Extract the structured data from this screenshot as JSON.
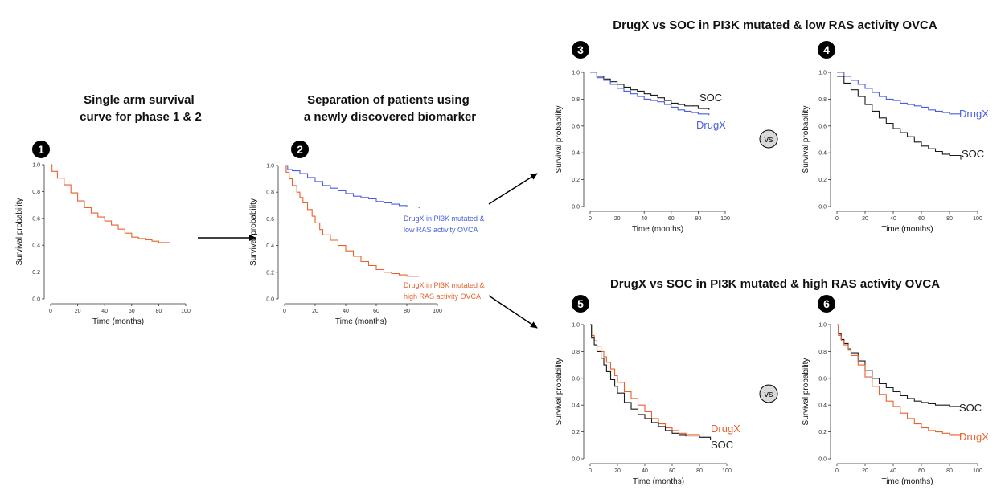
{
  "panel_1_heading": [
    "Single arm survival",
    "curve for phase 1 & 2"
  ],
  "panel_2_heading": [
    "Separation of patients using",
    "a newly discovered biomarker"
  ],
  "top_row_heading": "DrugX vs SOC in PI3K mutated & low RAS activity OVCA",
  "bottom_row_heading": "DrugX vs SOC in PI3K mutated & high RAS activity OVCA",
  "vs_label": "vs",
  "colors": {
    "orange": "#e8622c",
    "blue": "#4a5fe0",
    "black": "#1a1a1a",
    "badge": "#000000",
    "vs_fill": "#d9d9d9"
  },
  "chart_data": [
    {
      "id": "1",
      "type": "line",
      "step": true,
      "xlabel": "Time (months)",
      "ylabel": "Survival probability",
      "xlim": [
        0,
        100
      ],
      "ylim": [
        0,
        1
      ],
      "xticks": [
        0,
        20,
        40,
        60,
        80,
        100
      ],
      "yticks": [
        0.0,
        0.2,
        0.4,
        0.6,
        0.8,
        1.0
      ],
      "series": [
        {
          "color": "orange",
          "points": [
            [
              0,
              1.0
            ],
            [
              1,
              0.95
            ],
            [
              5,
              0.9
            ],
            [
              10,
              0.85
            ],
            [
              15,
              0.79
            ],
            [
              20,
              0.73
            ],
            [
              25,
              0.68
            ],
            [
              30,
              0.64
            ],
            [
              35,
              0.61
            ],
            [
              40,
              0.58
            ],
            [
              45,
              0.55
            ],
            [
              50,
              0.52
            ],
            [
              55,
              0.49
            ],
            [
              60,
              0.46
            ],
            [
              65,
              0.45
            ],
            [
              70,
              0.44
            ],
            [
              75,
              0.43
            ],
            [
              80,
              0.42
            ],
            [
              88,
              0.42
            ]
          ]
        }
      ]
    },
    {
      "id": "2",
      "type": "line",
      "step": true,
      "xlabel": "Time (months)",
      "ylabel": "Survival probability",
      "xlim": [
        0,
        100
      ],
      "ylim": [
        0,
        1
      ],
      "xticks": [
        0,
        20,
        40,
        60,
        80,
        100
      ],
      "yticks": [
        0.0,
        0.2,
        0.4,
        0.6,
        0.8,
        1.0
      ],
      "series": [
        {
          "name": "DrugX in PI3K mutated & low RAS activity OVCA",
          "color": "blue",
          "label_lines": [
            "DrugX in PI3K mutated &",
            "low RAS activity OVCA"
          ],
          "points": [
            [
              0,
              1.0
            ],
            [
              2,
              0.97
            ],
            [
              5,
              0.96
            ],
            [
              10,
              0.94
            ],
            [
              15,
              0.91
            ],
            [
              20,
              0.88
            ],
            [
              25,
              0.85
            ],
            [
              30,
              0.83
            ],
            [
              35,
              0.81
            ],
            [
              40,
              0.79
            ],
            [
              45,
              0.77
            ],
            [
              50,
              0.76
            ],
            [
              55,
              0.75
            ],
            [
              60,
              0.73
            ],
            [
              65,
              0.72
            ],
            [
              70,
              0.71
            ],
            [
              75,
              0.7
            ],
            [
              80,
              0.69
            ],
            [
              88,
              0.68
            ]
          ]
        },
        {
          "name": "DrugX in PI3K mutated & high RAS activity OVCA",
          "color": "orange",
          "label_lines": [
            "DrugX in PI3K mutated &",
            "high RAS activity OVCA"
          ],
          "points": [
            [
              0,
              1.0
            ],
            [
              1,
              0.95
            ],
            [
              3,
              0.9
            ],
            [
              5,
              0.85
            ],
            [
              8,
              0.8
            ],
            [
              10,
              0.76
            ],
            [
              12,
              0.72
            ],
            [
              15,
              0.67
            ],
            [
              18,
              0.62
            ],
            [
              20,
              0.57
            ],
            [
              23,
              0.52
            ],
            [
              25,
              0.48
            ],
            [
              30,
              0.44
            ],
            [
              35,
              0.4
            ],
            [
              40,
              0.36
            ],
            [
              45,
              0.32
            ],
            [
              50,
              0.28
            ],
            [
              55,
              0.25
            ],
            [
              60,
              0.22
            ],
            [
              65,
              0.2
            ],
            [
              70,
              0.19
            ],
            [
              75,
              0.18
            ],
            [
              80,
              0.17
            ],
            [
              88,
              0.17
            ]
          ]
        }
      ]
    },
    {
      "id": "3",
      "type": "line",
      "step": true,
      "xlabel": "Time (months)",
      "ylabel": "Survival probability",
      "xlim": [
        0,
        100
      ],
      "ylim": [
        0,
        1
      ],
      "xticks": [
        0,
        20,
        40,
        60,
        80,
        100
      ],
      "yticks": [
        0.0,
        0.2,
        0.4,
        0.6,
        0.8,
        1.0
      ],
      "series": [
        {
          "name": "SOC",
          "color": "black",
          "points": [
            [
              0,
              1.0
            ],
            [
              5,
              0.97
            ],
            [
              10,
              0.95
            ],
            [
              15,
              0.93
            ],
            [
              20,
              0.91
            ],
            [
              25,
              0.89
            ],
            [
              30,
              0.87
            ],
            [
              35,
              0.86
            ],
            [
              40,
              0.84
            ],
            [
              45,
              0.83
            ],
            [
              50,
              0.81
            ],
            [
              55,
              0.79
            ],
            [
              60,
              0.77
            ],
            [
              65,
              0.76
            ],
            [
              70,
              0.75
            ],
            [
              75,
              0.75
            ],
            [
              80,
              0.73
            ],
            [
              88,
              0.72
            ]
          ]
        },
        {
          "name": "DrugX",
          "color": "blue",
          "points": [
            [
              0,
              1.0
            ],
            [
              5,
              0.96
            ],
            [
              10,
              0.94
            ],
            [
              15,
              0.91
            ],
            [
              20,
              0.88
            ],
            [
              25,
              0.86
            ],
            [
              30,
              0.84
            ],
            [
              35,
              0.82
            ],
            [
              40,
              0.8
            ],
            [
              45,
              0.79
            ],
            [
              50,
              0.78
            ],
            [
              55,
              0.76
            ],
            [
              60,
              0.74
            ],
            [
              65,
              0.72
            ],
            [
              70,
              0.71
            ],
            [
              75,
              0.7
            ],
            [
              80,
              0.69
            ],
            [
              88,
              0.68
            ]
          ]
        }
      ]
    },
    {
      "id": "4",
      "type": "line",
      "step": true,
      "xlabel": "Time (months)",
      "ylabel": "Survival probability",
      "xlim": [
        0,
        100
      ],
      "ylim": [
        0,
        1
      ],
      "xticks": [
        0,
        20,
        40,
        60,
        80,
        100
      ],
      "yticks": [
        0.0,
        0.2,
        0.4,
        0.6,
        0.8,
        1.0
      ],
      "series": [
        {
          "name": "DrugX",
          "color": "blue",
          "points": [
            [
              0,
              1.0
            ],
            [
              5,
              0.97
            ],
            [
              10,
              0.94
            ],
            [
              15,
              0.91
            ],
            [
              20,
              0.88
            ],
            [
              25,
              0.85
            ],
            [
              30,
              0.82
            ],
            [
              35,
              0.8
            ],
            [
              40,
              0.79
            ],
            [
              45,
              0.77
            ],
            [
              50,
              0.76
            ],
            [
              55,
              0.75
            ],
            [
              60,
              0.74
            ],
            [
              65,
              0.72
            ],
            [
              70,
              0.71
            ],
            [
              75,
              0.7
            ],
            [
              80,
              0.69
            ],
            [
              88,
              0.69
            ]
          ]
        },
        {
          "name": "SOC",
          "color": "black",
          "points": [
            [
              0,
              0.97
            ],
            [
              5,
              0.92
            ],
            [
              10,
              0.87
            ],
            [
              15,
              0.82
            ],
            [
              20,
              0.76
            ],
            [
              25,
              0.71
            ],
            [
              30,
              0.66
            ],
            [
              35,
              0.62
            ],
            [
              40,
              0.58
            ],
            [
              45,
              0.55
            ],
            [
              50,
              0.52
            ],
            [
              55,
              0.48
            ],
            [
              60,
              0.45
            ],
            [
              65,
              0.43
            ],
            [
              70,
              0.41
            ],
            [
              75,
              0.39
            ],
            [
              80,
              0.38
            ],
            [
              85,
              0.38
            ],
            [
              88,
              0.35
            ]
          ]
        }
      ]
    },
    {
      "id": "5",
      "type": "line",
      "step": true,
      "xlabel": "Time (months)",
      "ylabel": "Survival probability",
      "xlim": [
        0,
        100
      ],
      "ylim": [
        0,
        1
      ],
      "xticks": [
        0,
        20,
        40,
        60,
        80,
        100
      ],
      "yticks": [
        0.0,
        0.2,
        0.4,
        0.6,
        0.8,
        1.0
      ],
      "series": [
        {
          "name": "DrugX",
          "color": "orange",
          "points": [
            [
              0,
              1.0
            ],
            [
              1,
              0.92
            ],
            [
              3,
              0.88
            ],
            [
              5,
              0.84
            ],
            [
              8,
              0.8
            ],
            [
              10,
              0.76
            ],
            [
              12,
              0.72
            ],
            [
              15,
              0.67
            ],
            [
              18,
              0.62
            ],
            [
              20,
              0.57
            ],
            [
              25,
              0.5
            ],
            [
              30,
              0.45
            ],
            [
              35,
              0.4
            ],
            [
              40,
              0.35
            ],
            [
              45,
              0.3
            ],
            [
              50,
              0.26
            ],
            [
              55,
              0.23
            ],
            [
              60,
              0.21
            ],
            [
              65,
              0.19
            ],
            [
              70,
              0.18
            ],
            [
              75,
              0.18
            ],
            [
              80,
              0.17
            ],
            [
              88,
              0.17
            ]
          ]
        },
        {
          "name": "SOC",
          "color": "black",
          "points": [
            [
              0,
              1.0
            ],
            [
              1,
              0.9
            ],
            [
              3,
              0.85
            ],
            [
              5,
              0.8
            ],
            [
              8,
              0.75
            ],
            [
              10,
              0.7
            ],
            [
              12,
              0.65
            ],
            [
              15,
              0.59
            ],
            [
              18,
              0.54
            ],
            [
              20,
              0.49
            ],
            [
              25,
              0.42
            ],
            [
              30,
              0.37
            ],
            [
              35,
              0.33
            ],
            [
              40,
              0.3
            ],
            [
              45,
              0.27
            ],
            [
              50,
              0.24
            ],
            [
              55,
              0.21
            ],
            [
              60,
              0.19
            ],
            [
              65,
              0.18
            ],
            [
              70,
              0.17
            ],
            [
              80,
              0.16
            ],
            [
              88,
              0.14
            ]
          ]
        }
      ]
    },
    {
      "id": "6",
      "type": "line",
      "step": true,
      "xlabel": "Time (months)",
      "ylabel": "Survival probability",
      "xlim": [
        0,
        100
      ],
      "ylim": [
        0,
        1
      ],
      "xticks": [
        0,
        20,
        40,
        60,
        80,
        100
      ],
      "yticks": [
        0.0,
        0.2,
        0.4,
        0.6,
        0.8,
        1.0
      ],
      "series": [
        {
          "name": "SOC",
          "color": "black",
          "points": [
            [
              0,
              1.0
            ],
            [
              1,
              0.93
            ],
            [
              3,
              0.89
            ],
            [
              5,
              0.86
            ],
            [
              8,
              0.82
            ],
            [
              10,
              0.79
            ],
            [
              15,
              0.73
            ],
            [
              20,
              0.66
            ],
            [
              25,
              0.6
            ],
            [
              30,
              0.56
            ],
            [
              35,
              0.53
            ],
            [
              40,
              0.5
            ],
            [
              45,
              0.47
            ],
            [
              50,
              0.45
            ],
            [
              55,
              0.43
            ],
            [
              60,
              0.42
            ],
            [
              65,
              0.41
            ],
            [
              70,
              0.4
            ],
            [
              80,
              0.39
            ],
            [
              88,
              0.38
            ]
          ]
        },
        {
          "name": "DrugX",
          "color": "orange",
          "points": [
            [
              0,
              1.0
            ],
            [
              1,
              0.92
            ],
            [
              3,
              0.88
            ],
            [
              5,
              0.85
            ],
            [
              8,
              0.81
            ],
            [
              10,
              0.77
            ],
            [
              15,
              0.7
            ],
            [
              20,
              0.61
            ],
            [
              25,
              0.54
            ],
            [
              30,
              0.48
            ],
            [
              35,
              0.43
            ],
            [
              40,
              0.39
            ],
            [
              45,
              0.34
            ],
            [
              50,
              0.3
            ],
            [
              55,
              0.26
            ],
            [
              60,
              0.23
            ],
            [
              65,
              0.21
            ],
            [
              70,
              0.2
            ],
            [
              75,
              0.19
            ],
            [
              80,
              0.18
            ],
            [
              88,
              0.17
            ]
          ]
        }
      ]
    }
  ]
}
